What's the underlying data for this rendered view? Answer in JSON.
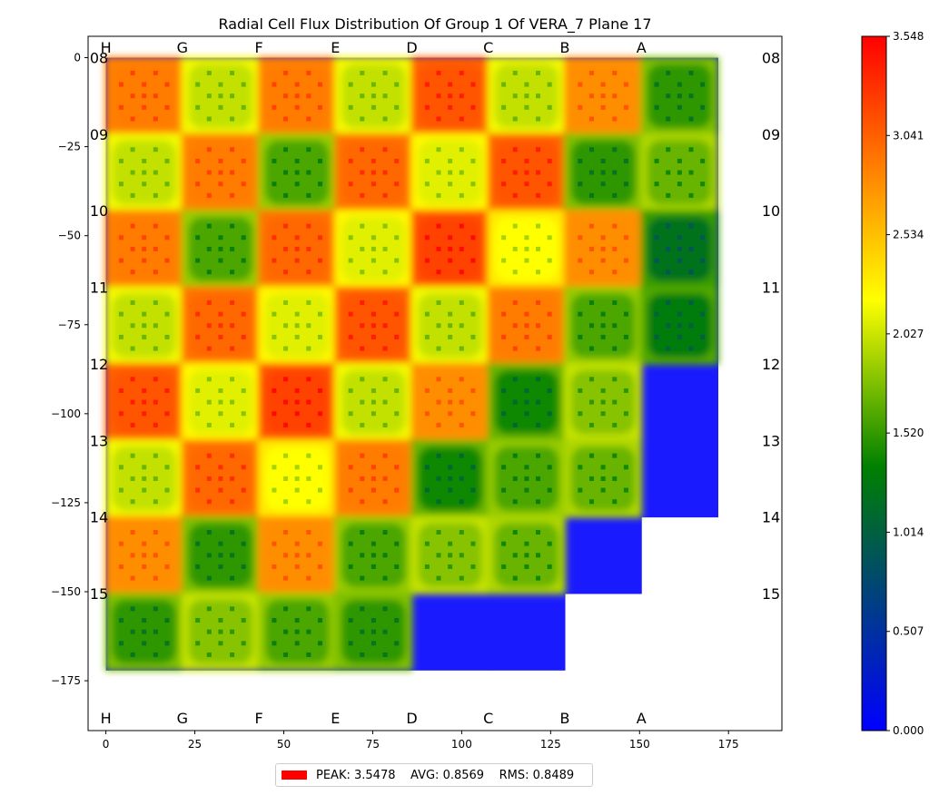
{
  "chart_data": {
    "type": "heatmap",
    "title": "Radial Cell Flux Distribution Of Group 1 Of VERA_7 Plane 17",
    "xlabel": "",
    "ylabel": "",
    "xlim": [
      -5,
      190
    ],
    "ylim": [
      -189,
      6
    ],
    "x_ticks": [
      0,
      25,
      50,
      75,
      100,
      125,
      150,
      175
    ],
    "y_ticks": [
      0,
      -25,
      -50,
      -75,
      -100,
      -125,
      -150,
      -175
    ],
    "column_labels": [
      "H",
      "G",
      "F",
      "E",
      "D",
      "C",
      "B",
      "A"
    ],
    "row_labels": [
      "08",
      "09",
      "10",
      "11",
      "12",
      "13",
      "14",
      "15"
    ],
    "assembly_pitch": 21.5,
    "colorbar": {
      "min": 0.0,
      "max": 3.548,
      "ticks": [
        "0.000",
        "0.507",
        "1.014",
        "1.520",
        "2.027",
        "2.534",
        "3.041",
        "3.548"
      ],
      "colors": [
        "#0000ff",
        "#008000",
        "#ffff00",
        "#ff0000"
      ]
    },
    "assembly_flux": [
      [
        2.9,
        2.0,
        2.9,
        2.0,
        3.1,
        2.0,
        2.8,
        1.5
      ],
      [
        2.0,
        2.9,
        1.6,
        3.0,
        2.1,
        3.1,
        1.5,
        1.7
      ],
      [
        2.9,
        1.6,
        3.0,
        2.1,
        3.2,
        2.2,
        2.8,
        1.2
      ],
      [
        2.0,
        3.0,
        2.1,
        3.1,
        2.0,
        2.9,
        1.6,
        1.3
      ],
      [
        3.1,
        2.1,
        3.2,
        2.0,
        2.8,
        1.4,
        1.8,
        null
      ],
      [
        2.0,
        3.0,
        2.2,
        2.9,
        1.4,
        1.6,
        1.7,
        null
      ],
      [
        2.8,
        1.5,
        2.8,
        1.6,
        1.8,
        1.7,
        null,
        null
      ],
      [
        1.5,
        1.8,
        1.6,
        1.5,
        null,
        null,
        null,
        null
      ]
    ],
    "summary": {
      "peak_label": "PEAK:",
      "peak": "3.5478",
      "avg_label": "AVG:",
      "avg": "0.8569",
      "rms_label": "RMS:",
      "rms": "0.8489"
    }
  }
}
